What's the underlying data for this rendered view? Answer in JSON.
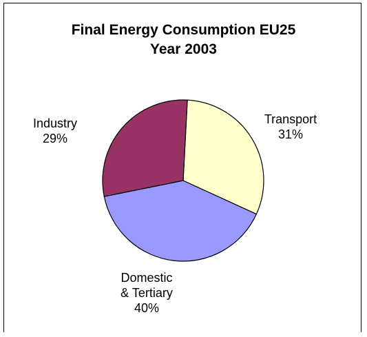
{
  "chart_data": {
    "type": "pie",
    "title": "Final Energy Consumption EU25",
    "subtitle": "Year 2003",
    "categories": [
      "Transport",
      "Domestic & Tertiary",
      "Industry"
    ],
    "values": [
      31,
      40,
      29
    ],
    "unit": "%",
    "labels": [
      {
        "category": "Transport",
        "lines": [
          "Transport",
          "31%"
        ]
      },
      {
        "category": "Domestic & Tertiary",
        "lines": [
          "Domestic",
          "& Tertiary",
          "40%"
        ]
      },
      {
        "category": "Industry",
        "lines": [
          "Industry",
          "29%"
        ]
      }
    ],
    "colors": [
      "#FFFFCC",
      "#9999FF",
      "#993366"
    ],
    "legend": "none"
  }
}
